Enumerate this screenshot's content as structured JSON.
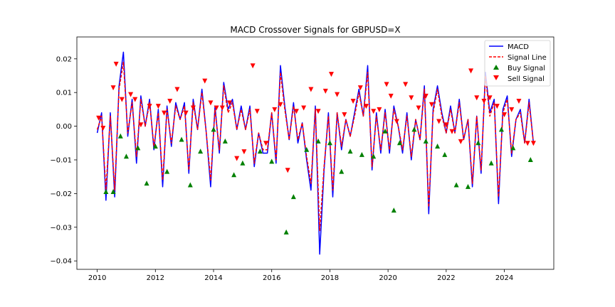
{
  "chart_data": {
    "type": "line",
    "title": "MACD Crossover Signals for GBPUSD=X",
    "xlabel": "",
    "ylabel": "",
    "xlim": [
      2009.3,
      2025.7
    ],
    "ylim": [
      -0.0425,
      0.0265
    ],
    "x_ticks": [
      2010,
      2012,
      2014,
      2016,
      2018,
      2020,
      2022,
      2024
    ],
    "x_tick_labels": [
      "2010",
      "2012",
      "2014",
      "2016",
      "2018",
      "2020",
      "2022",
      "2024"
    ],
    "y_ticks": [
      0.02,
      0.01,
      0.0,
      -0.01,
      -0.02,
      -0.03,
      -0.04
    ],
    "y_tick_labels": [
      "0.02",
      "0.01",
      "0.00",
      "−0.01",
      "−0.02",
      "−0.03",
      "−0.04"
    ],
    "grid": false,
    "legend_position": "top-right",
    "legend": [
      "MACD",
      "Signal Line",
      "Buy Signal",
      "Sell Signal"
    ],
    "colors": {
      "macd": "#0000ff",
      "signal": "#ff0000",
      "buy": "#008000",
      "sell": "#ff0000"
    },
    "x": [
      2010.0,
      2010.15,
      2010.3,
      2010.45,
      2010.6,
      2010.75,
      2010.9,
      2011.05,
      2011.2,
      2011.35,
      2011.5,
      2011.65,
      2011.8,
      2011.95,
      2012.1,
      2012.25,
      2012.4,
      2012.55,
      2012.7,
      2012.85,
      2013.0,
      2013.15,
      2013.3,
      2013.45,
      2013.6,
      2013.75,
      2013.9,
      2014.05,
      2014.2,
      2014.35,
      2014.5,
      2014.65,
      2014.8,
      2014.95,
      2015.1,
      2015.25,
      2015.4,
      2015.55,
      2015.7,
      2015.85,
      2016.0,
      2016.15,
      2016.3,
      2016.45,
      2016.6,
      2016.75,
      2016.9,
      2017.05,
      2017.2,
      2017.35,
      2017.5,
      2017.65,
      2017.8,
      2017.95,
      2018.1,
      2018.25,
      2018.4,
      2018.55,
      2018.7,
      2018.85,
      2019.0,
      2019.15,
      2019.3,
      2019.45,
      2019.6,
      2019.75,
      2019.9,
      2020.05,
      2020.2,
      2020.35,
      2020.5,
      2020.65,
      2020.8,
      2020.95,
      2021.1,
      2021.25,
      2021.4,
      2021.55,
      2021.7,
      2021.85,
      2022.0,
      2022.15,
      2022.3,
      2022.45,
      2022.6,
      2022.75,
      2022.9,
      2023.05,
      2023.2,
      2023.35,
      2023.5,
      2023.65,
      2023.8,
      2023.95,
      2024.1,
      2024.25,
      2024.4,
      2024.55,
      2024.7,
      2024.85,
      2025.0
    ],
    "series": [
      {
        "name": "MACD",
        "values": [
          -0.002,
          0.004,
          -0.022,
          0.004,
          -0.021,
          0.012,
          0.022,
          -0.003,
          0.008,
          -0.011,
          0.009,
          0.0,
          0.008,
          -0.007,
          0.005,
          -0.018,
          0.006,
          -0.006,
          0.007,
          0.002,
          0.007,
          -0.014,
          0.008,
          -0.001,
          0.011,
          -0.002,
          -0.018,
          0.006,
          -0.008,
          0.013,
          0.005,
          0.008,
          -0.001,
          0.006,
          -0.001,
          0.006,
          -0.012,
          -0.002,
          -0.008,
          -0.008,
          0.004,
          -0.011,
          0.018,
          0.006,
          -0.004,
          0.007,
          -0.005,
          0.001,
          -0.01,
          -0.019,
          0.006,
          -0.038,
          -0.013,
          0.004,
          -0.021,
          0.004,
          -0.007,
          0.002,
          -0.003,
          0.004,
          0.011,
          0.003,
          0.018,
          -0.013,
          0.004,
          -0.008,
          0.005,
          -0.008,
          0.006,
          0.0,
          -0.008,
          0.004,
          -0.01,
          0.002,
          -0.004,
          0.012,
          -0.026,
          0.005,
          0.012,
          0.004,
          -0.002,
          0.006,
          -0.002,
          0.008,
          -0.004,
          0.002,
          -0.018,
          0.003,
          -0.014,
          0.016,
          0.004,
          0.008,
          -0.023,
          0.005,
          0.009,
          -0.009,
          0.002,
          0.005,
          -0.005,
          0.008,
          -0.005
        ]
      },
      {
        "name": "Signal Line",
        "values": [
          -0.001,
          0.003,
          -0.019,
          0.003,
          -0.019,
          0.011,
          0.019,
          -0.002,
          0.007,
          -0.009,
          0.008,
          0.0,
          0.007,
          -0.006,
          0.004,
          -0.016,
          0.005,
          -0.005,
          0.006,
          0.002,
          0.006,
          -0.013,
          0.007,
          -0.001,
          0.01,
          -0.002,
          -0.016,
          0.005,
          -0.007,
          0.012,
          0.004,
          0.007,
          -0.001,
          0.005,
          -0.001,
          0.005,
          -0.011,
          -0.002,
          -0.007,
          -0.007,
          0.004,
          -0.01,
          0.016,
          0.005,
          -0.004,
          0.006,
          -0.004,
          0.001,
          -0.009,
          -0.017,
          0.005,
          -0.031,
          -0.012,
          0.003,
          -0.019,
          0.004,
          -0.006,
          0.002,
          -0.003,
          0.003,
          0.01,
          0.003,
          0.016,
          -0.012,
          0.003,
          -0.007,
          0.004,
          -0.007,
          0.005,
          0.0,
          -0.007,
          0.003,
          -0.009,
          0.002,
          -0.004,
          0.011,
          -0.024,
          0.004,
          0.011,
          0.003,
          -0.002,
          0.005,
          -0.002,
          0.007,
          -0.004,
          0.002,
          -0.017,
          0.003,
          -0.013,
          0.015,
          0.003,
          0.007,
          -0.021,
          0.004,
          0.008,
          -0.008,
          0.002,
          0.004,
          -0.005,
          0.007,
          -0.005
        ]
      }
    ],
    "buy_signals": [
      {
        "x": 2010.3,
        "y": -0.0195
      },
      {
        "x": 2010.55,
        "y": -0.0195
      },
      {
        "x": 2010.8,
        "y": -0.003
      },
      {
        "x": 2011.0,
        "y": -0.009
      },
      {
        "x": 2011.4,
        "y": -0.0065
      },
      {
        "x": 2011.7,
        "y": -0.017
      },
      {
        "x": 2012.0,
        "y": -0.006
      },
      {
        "x": 2012.4,
        "y": -0.0135
      },
      {
        "x": 2012.9,
        "y": -0.004
      },
      {
        "x": 2013.2,
        "y": -0.0175
      },
      {
        "x": 2013.55,
        "y": -0.0075
      },
      {
        "x": 2014.0,
        "y": -0.001
      },
      {
        "x": 2014.4,
        "y": -0.0045
      },
      {
        "x": 2014.7,
        "y": -0.0145
      },
      {
        "x": 2015.0,
        "y": -0.011
      },
      {
        "x": 2015.6,
        "y": -0.0075
      },
      {
        "x": 2016.0,
        "y": -0.0105
      },
      {
        "x": 2016.5,
        "y": -0.0315
      },
      {
        "x": 2016.75,
        "y": -0.021
      },
      {
        "x": 2017.2,
        "y": -0.007
      },
      {
        "x": 2017.6,
        "y": -0.0045
      },
      {
        "x": 2018.0,
        "y": -0.005
      },
      {
        "x": 2018.4,
        "y": -0.0135
      },
      {
        "x": 2018.7,
        "y": -0.0075
      },
      {
        "x": 2019.1,
        "y": -0.0085
      },
      {
        "x": 2019.5,
        "y": -0.009
      },
      {
        "x": 2019.9,
        "y": -0.0015
      },
      {
        "x": 2020.2,
        "y": -0.025
      },
      {
        "x": 2020.4,
        "y": -0.005
      },
      {
        "x": 2020.9,
        "y": -0.001
      },
      {
        "x": 2021.3,
        "y": -0.0045
      },
      {
        "x": 2021.7,
        "y": -0.006
      },
      {
        "x": 2021.95,
        "y": -0.0085
      },
      {
        "x": 2022.35,
        "y": -0.0175
      },
      {
        "x": 2022.75,
        "y": -0.018
      },
      {
        "x": 2023.1,
        "y": -0.005
      },
      {
        "x": 2023.55,
        "y": -0.011
      },
      {
        "x": 2023.9,
        "y": -0.001
      },
      {
        "x": 2024.3,
        "y": -0.0065
      },
      {
        "x": 2024.9,
        "y": -0.01
      }
    ],
    "sell_signals": [
      {
        "x": 2010.05,
        "y": 0.0025
      },
      {
        "x": 2010.2,
        "y": -0.0005
      },
      {
        "x": 2010.55,
        "y": 0.0115
      },
      {
        "x": 2010.65,
        "y": 0.0185
      },
      {
        "x": 2010.85,
        "y": 0.008
      },
      {
        "x": 2011.15,
        "y": 0.0095
      },
      {
        "x": 2011.3,
        "y": 0.008
      },
      {
        "x": 2011.5,
        "y": 0.0005
      },
      {
        "x": 2011.8,
        "y": 0.006
      },
      {
        "x": 2012.1,
        "y": 0.006
      },
      {
        "x": 2012.3,
        "y": 0.004
      },
      {
        "x": 2012.5,
        "y": 0.0075
      },
      {
        "x": 2012.75,
        "y": 0.011
      },
      {
        "x": 2013.05,
        "y": 0.004
      },
      {
        "x": 2013.3,
        "y": 0.0055
      },
      {
        "x": 2013.7,
        "y": 0.0135
      },
      {
        "x": 2013.9,
        "y": 0.007
      },
      {
        "x": 2014.1,
        "y": 0.0055
      },
      {
        "x": 2014.3,
        "y": 0.0055
      },
      {
        "x": 2014.55,
        "y": 0.007
      },
      {
        "x": 2014.8,
        "y": -0.0095
      },
      {
        "x": 2015.05,
        "y": -0.0075
      },
      {
        "x": 2015.35,
        "y": 0.018
      },
      {
        "x": 2015.5,
        "y": 0.0045
      },
      {
        "x": 2015.8,
        "y": -0.005
      },
      {
        "x": 2016.1,
        "y": 0.005
      },
      {
        "x": 2016.3,
        "y": 0.0065
      },
      {
        "x": 2016.55,
        "y": -0.013
      },
      {
        "x": 2016.85,
        "y": 0.0045
      },
      {
        "x": 2017.1,
        "y": 0.0055
      },
      {
        "x": 2017.35,
        "y": 0.011
      },
      {
        "x": 2017.6,
        "y": 0.0045
      },
      {
        "x": 2017.85,
        "y": 0.0105
      },
      {
        "x": 2018.05,
        "y": 0.0155
      },
      {
        "x": 2018.25,
        "y": 0.0095
      },
      {
        "x": 2018.5,
        "y": 0.0035
      },
      {
        "x": 2018.8,
        "y": 0.0075
      },
      {
        "x": 2019.05,
        "y": 0.0115
      },
      {
        "x": 2019.25,
        "y": 0.006
      },
      {
        "x": 2019.5,
        "y": 0.0045
      },
      {
        "x": 2019.7,
        "y": 0.005
      },
      {
        "x": 2019.95,
        "y": 0.0125
      },
      {
        "x": 2020.1,
        "y": 0.009
      },
      {
        "x": 2020.3,
        "y": 0.0015
      },
      {
        "x": 2020.6,
        "y": 0.0125
      },
      {
        "x": 2020.8,
        "y": 0.0085
      },
      {
        "x": 2021.05,
        "y": 0.0055
      },
      {
        "x": 2021.3,
        "y": 0.009
      },
      {
        "x": 2021.5,
        "y": 0.0065
      },
      {
        "x": 2021.75,
        "y": 0.0015
      },
      {
        "x": 2022.0,
        "y": 0.0005
      },
      {
        "x": 2022.2,
        "y": -0.0015
      },
      {
        "x": 2022.5,
        "y": -0.0045
      },
      {
        "x": 2022.85,
        "y": 0.0165
      },
      {
        "x": 2023.05,
        "y": 0.0085
      },
      {
        "x": 2023.3,
        "y": 0.0075
      },
      {
        "x": 2023.5,
        "y": 0.0085
      },
      {
        "x": 2023.75,
        "y": 0.006
      },
      {
        "x": 2024.0,
        "y": 0.0035
      },
      {
        "x": 2024.25,
        "y": 0.005
      },
      {
        "x": 2024.5,
        "y": 0.0075
      },
      {
        "x": 2024.8,
        "y": -0.005
      },
      {
        "x": 2025.0,
        "y": -0.005
      }
    ]
  }
}
